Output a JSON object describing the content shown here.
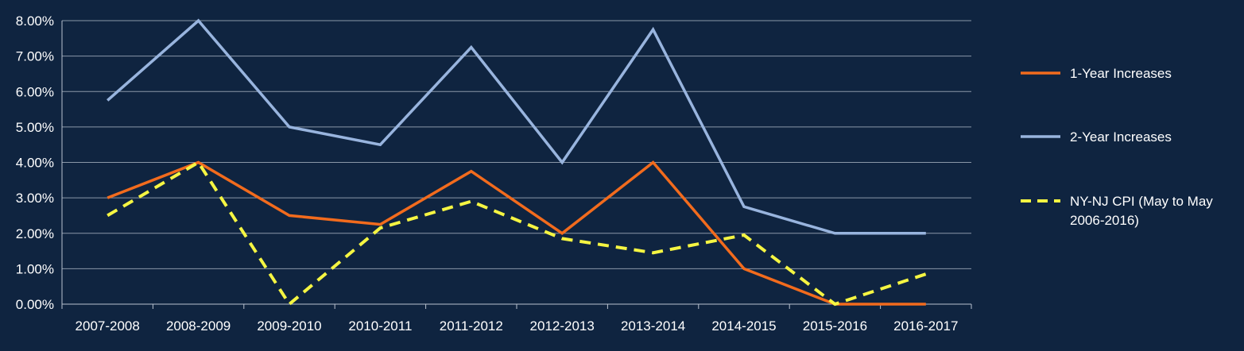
{
  "chart_data": {
    "type": "line",
    "title": "",
    "xlabel": "",
    "ylabel": "",
    "categories": [
      "2007-2008",
      "2008-2009",
      "2009-2010",
      "2010-2011",
      "2011-2012",
      "2012-2013",
      "2013-2014",
      "2014-2015",
      "2015-2016",
      "2016-2017"
    ],
    "ylim": [
      0,
      8
    ],
    "y_ticks": [
      0,
      1,
      2,
      3,
      4,
      5,
      6,
      7,
      8
    ],
    "y_tick_labels": [
      "0.00%",
      "1.00%",
      "2.00%",
      "3.00%",
      "4.00%",
      "5.00%",
      "6.00%",
      "7.00%",
      "8.00%"
    ],
    "grid": true,
    "legend_position": "right",
    "colors": {
      "background": "#0f2440",
      "grid": "#8a97a8",
      "axis": "#b8c2cf",
      "text": "#ffffff"
    },
    "series": [
      {
        "name": "1-Year Increases",
        "color": "#f26b1d",
        "dash": "solid",
        "values": [
          3.0,
          4.0,
          2.5,
          2.25,
          3.75,
          2.0,
          4.0,
          1.0,
          0.0,
          0.0
        ]
      },
      {
        "name": "2-Year Increases",
        "color": "#98b4de",
        "dash": "solid",
        "values": [
          5.75,
          8.0,
          5.0,
          4.5,
          7.25,
          4.0,
          7.75,
          2.75,
          2.0,
          2.0
        ]
      },
      {
        "name": "NY-NJ CPI (May to May 2006-2016)",
        "legend_lines": [
          "NY-NJ CPI (May to May",
          "2006-2016)"
        ],
        "color": "#f5f542",
        "dash": "dashed",
        "values": [
          2.5,
          4.0,
          0.0,
          2.15,
          2.9,
          1.85,
          1.45,
          1.95,
          0.0,
          0.85
        ]
      }
    ]
  }
}
